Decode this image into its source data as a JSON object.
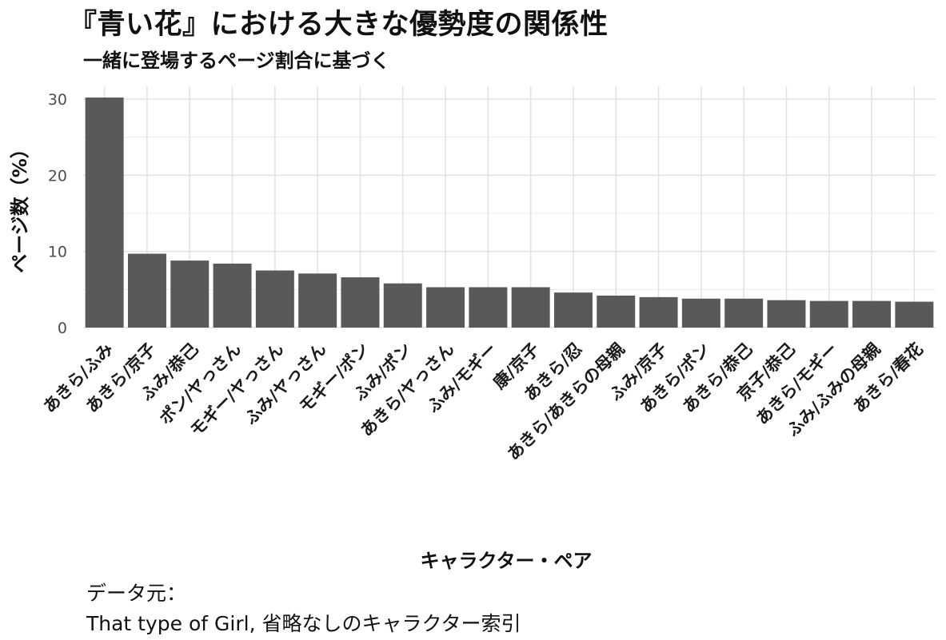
{
  "chart_data": {
    "type": "bar",
    "title": "『青い花』における大きな優勢度の関係性",
    "subtitle": "一緒に登場するページ割合に基づく",
    "xlabel": "キャラクター・ペア",
    "ylabel": "ページ数（%）",
    "ylim": [
      0,
      32
    ],
    "yticks": [
      0,
      10,
      20,
      30
    ],
    "grid": true,
    "categories": [
      "あきら/ふみ",
      "あきら/京子",
      "ふみ/恭己",
      "ポン/ヤっさん",
      "モギー/ヤっさん",
      "ふみ/ヤっさん",
      "モギー/ポン",
      "ふみ/ポン",
      "あきら/ヤっさん",
      "ふみ/モギー",
      "康/京子",
      "あきら/忍",
      "あきら/あきらの母親",
      "ふみ/京子",
      "あきら/ポン",
      "あきら/恭己",
      "京子/恭己",
      "あきら/モギー",
      "ふみ/ふみの母親",
      "あきら/春花"
    ],
    "values": [
      30.2,
      9.7,
      8.8,
      8.4,
      7.5,
      7.1,
      6.6,
      5.8,
      5.3,
      5.3,
      5.3,
      4.6,
      4.2,
      4.0,
      3.8,
      3.8,
      3.6,
      3.5,
      3.5,
      3.4
    ],
    "bar_color": "#595959"
  },
  "caption": {
    "line1": "データ元：",
    "line2": "That type of Girl, 省略なしのキャラクター索引"
  }
}
